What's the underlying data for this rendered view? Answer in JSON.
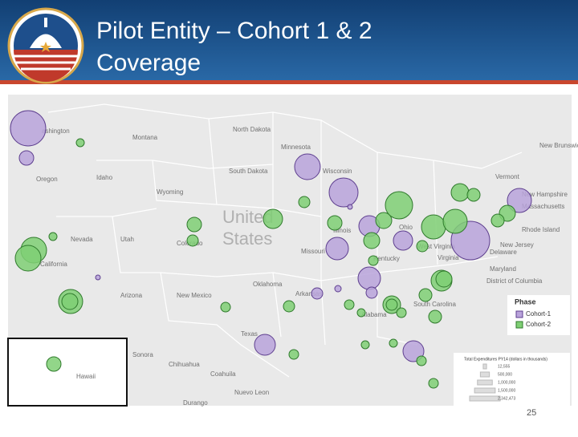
{
  "title": "Pilot Entity – Cohort 1 & 2 Coverage",
  "slide_number": "25",
  "map": {
    "labels": [
      "ashington",
      "Montana",
      "North Dakota",
      "Minnesota",
      "South Dakota",
      "Wisconsin",
      "Oregon",
      "Idaho",
      "Wyoming",
      "Nevada",
      "Utah",
      "Colorado",
      "California",
      "Arizona",
      "New Mexico",
      "Oklahoma",
      "Texas",
      "Arkansas",
      "Missouri",
      "Illinois",
      "Ohio",
      "Kentucky",
      "West Virginia",
      "Virginia",
      "Maryland",
      "District of Columbia",
      "Delaware",
      "New Jersey",
      "Rhode Island",
      "Massachusetts",
      "New Hampshire",
      "Vermont",
      "South Carolina",
      "Alabama",
      "New Brunswick",
      "Sonora",
      "Chihuahua",
      "Coahuila",
      "Nuevo Leon",
      "Durango",
      "Hawaii"
    ],
    "country_label": [
      "United",
      "States"
    ]
  },
  "legend": {
    "title": "Phase",
    "phases": [
      {
        "name": "Cohort-1",
        "color": "#b9a3db"
      },
      {
        "name": "Cohort-2",
        "color": "#7fcf74"
      }
    ],
    "size_title": "Total Expenditures PY14 (dollars in thousands)",
    "size_values": [
      12555,
      500000,
      1000000,
      1500000,
      2342473
    ],
    "size_value_labels": [
      "12,555",
      "500,000",
      "1,000,000",
      "1,500,000",
      "2,342,473"
    ]
  }
}
